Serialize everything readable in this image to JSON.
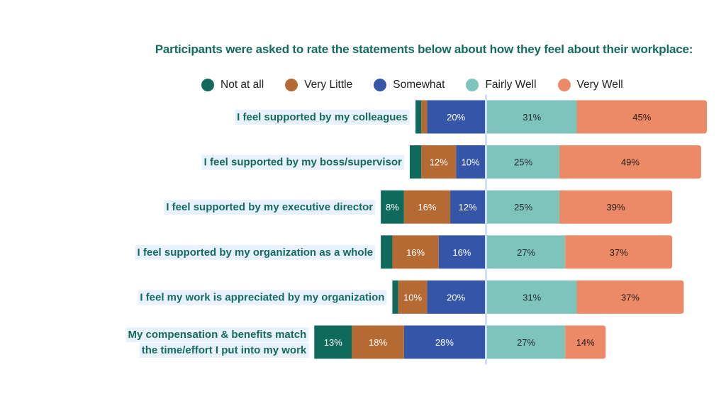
{
  "chart_data": {
    "type": "bar",
    "orientation": "horizontal",
    "stacking": "diverging",
    "title": "Participants were asked to rate the statements below about how they feel about their workplace:",
    "xlabel": "",
    "ylabel": "",
    "unit": "%",
    "legend_position": "top",
    "grid": false,
    "categories": [
      [
        "I feel supported by my colleagues"
      ],
      [
        "I feel supported by my boss/supervisor"
      ],
      [
        "I feel supported by my executive director"
      ],
      [
        "I feel supported by my organization as a whole"
      ],
      [
        "I feel my work is appreciated by my organization"
      ],
      [
        "My compensation & benefits match",
        "the time/effort I put into my work"
      ]
    ],
    "series": [
      {
        "name": "Not at all",
        "side": "negative",
        "color": "#0f6a5c",
        "label_color": "#ffffff",
        "values": [
          2,
          4,
          8,
          4,
          2,
          13
        ],
        "show_labels": [
          false,
          false,
          true,
          false,
          false,
          true
        ]
      },
      {
        "name": "Very Little",
        "side": "negative",
        "color": "#b56a34",
        "label_color": "#ffffff",
        "values": [
          2,
          12,
          16,
          16,
          10,
          18
        ],
        "show_labels": [
          false,
          true,
          true,
          true,
          true,
          true
        ]
      },
      {
        "name": "Somewhat",
        "side": "negative",
        "color": "#3455a8",
        "label_color": "#ffffff",
        "values": [
          20,
          10,
          12,
          16,
          20,
          28
        ],
        "show_labels": [
          true,
          true,
          true,
          true,
          true,
          true
        ]
      },
      {
        "name": "Fairly Well",
        "side": "positive",
        "color": "#7fc3bd",
        "label_color": "#1f2b2b",
        "values": [
          31,
          25,
          25,
          27,
          31,
          27
        ],
        "show_labels": [
          true,
          true,
          true,
          true,
          true,
          true
        ]
      },
      {
        "name": "Very Well",
        "side": "positive",
        "color": "#ec8a67",
        "label_color": "#2a1a14",
        "values": [
          45,
          49,
          39,
          37,
          37,
          14
        ],
        "show_labels": [
          true,
          true,
          true,
          true,
          true,
          true
        ]
      }
    ],
    "divider_color": "#cfe0f5",
    "label_highlight_color": "#e8f2fc"
  }
}
